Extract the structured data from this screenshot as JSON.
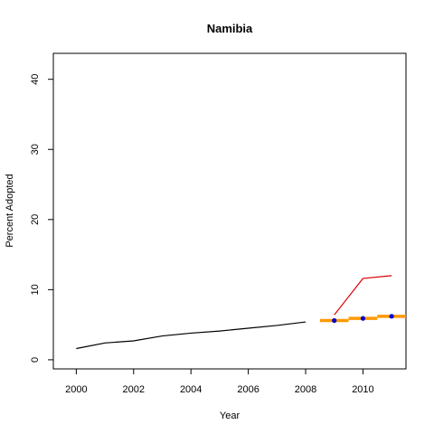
{
  "chart_data": {
    "type": "line",
    "title": "Namibia",
    "xlabel": "Year",
    "ylabel": "Percent Adopted",
    "xlim": [
      1999.2,
      2011.5
    ],
    "ylim": [
      -1.3,
      43.7
    ],
    "x_ticks": [
      2000,
      2002,
      2004,
      2006,
      2008,
      2010
    ],
    "y_ticks": [
      0,
      10,
      20,
      30,
      40
    ],
    "grid": false,
    "legend": "none",
    "colors": {
      "history": "#000000",
      "upper": "#dd0000",
      "band": "#ff9900",
      "points": "#0000cc"
    },
    "series": [
      {
        "role": "history",
        "x": [
          2000,
          2001,
          2002,
          2003,
          2004,
          2005,
          2006,
          2007,
          2008
        ],
        "y": [
          1.6,
          2.4,
          2.7,
          3.4,
          3.8,
          4.1,
          4.5,
          4.9,
          5.4
        ]
      },
      {
        "role": "upper",
        "x": [
          2009,
          2010,
          2011
        ],
        "y": [
          6.4,
          11.6,
          12.0
        ]
      },
      {
        "role": "band",
        "segments": [
          {
            "x": [
              2008.5,
              2009.5
            ],
            "y": 5.6
          },
          {
            "x": [
              2009.5,
              2010.5
            ],
            "y": 5.9
          },
          {
            "x": [
              2010.5,
              2011.5
            ],
            "y": 6.2
          }
        ]
      },
      {
        "role": "points",
        "x": [
          2009,
          2010,
          2011
        ],
        "y": [
          5.6,
          5.9,
          6.2
        ]
      }
    ]
  }
}
